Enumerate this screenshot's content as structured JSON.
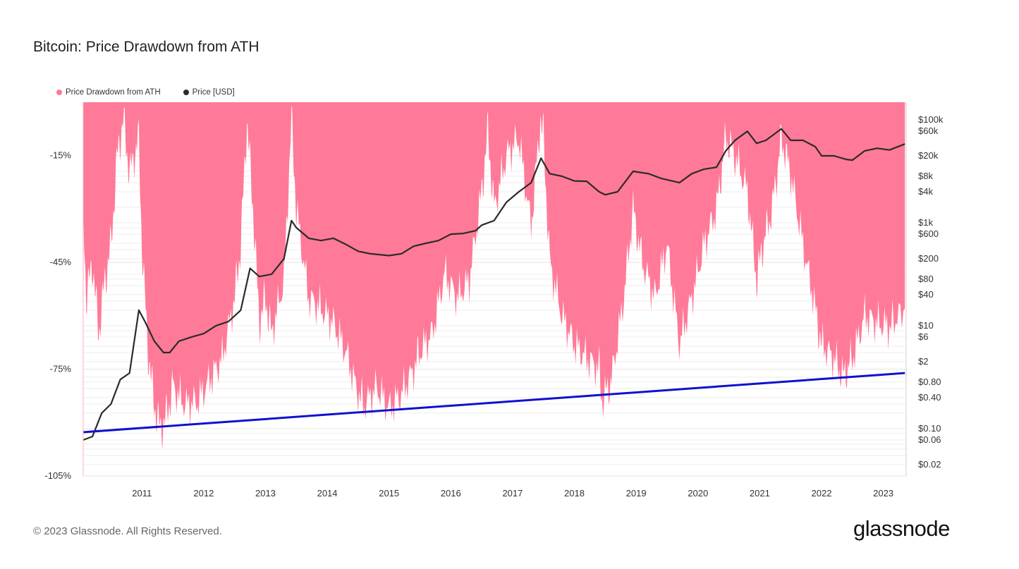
{
  "title": "Bitcoin: Price Drawdown from ATH",
  "legend": {
    "drawdown_label": "Price Drawdown from ATH",
    "price_label": "Price [USD]"
  },
  "colors": {
    "drawdown": "#ff7a98",
    "price": "#2b2b2b",
    "trendline": "#1010d0"
  },
  "footer": "© 2023 Glassnode. All Rights Reserved.",
  "brand": "glassnode",
  "chart_data": {
    "type": "area",
    "x_ticks": [
      "2011",
      "2012",
      "2013",
      "2014",
      "2015",
      "2016",
      "2017",
      "2018",
      "2019",
      "2020",
      "2021",
      "2022",
      "2023"
    ],
    "y_left_ticks": [
      "-15%",
      "-45%",
      "-75%",
      "-105%"
    ],
    "y_left_values": [
      -15,
      -45,
      -75,
      -105
    ],
    "y_right_ticks": [
      "$100k",
      "$60k",
      "$20k",
      "$8k",
      "$4k",
      "$1k",
      "$600",
      "$200",
      "$80",
      "$40",
      "$10",
      "$6",
      "$2",
      "$0.80",
      "$0.40",
      "$0.10",
      "$0.06",
      "$0.02"
    ],
    "y_right_values": [
      100000,
      60000,
      20000,
      8000,
      4000,
      1000,
      600,
      200,
      80,
      40,
      10,
      6,
      2,
      0.8,
      0.4,
      0.1,
      0.06,
      0.02
    ],
    "xlim": [
      "2010-07",
      "2023-11"
    ],
    "ylim_left": [
      -105,
      0
    ],
    "ylim_right_log": [
      0.02,
      200000
    ],
    "grid": true,
    "legend_position": "top-left",
    "series": [
      {
        "name": "Price Drawdown from ATH",
        "axis": "left",
        "x": [
          2010.55,
          2010.6,
          2010.7,
          2010.8,
          2010.9,
          2011.0,
          2011.1,
          2011.2,
          2011.3,
          2011.45,
          2011.5,
          2011.6,
          2011.7,
          2011.8,
          2011.9,
          2012.0,
          2012.2,
          2012.4,
          2012.6,
          2012.8,
          2013.0,
          2013.1,
          2013.2,
          2013.3,
          2013.4,
          2013.5,
          2013.6,
          2013.8,
          2013.92,
          2014.0,
          2014.2,
          2014.4,
          2014.6,
          2014.8,
          2015.0,
          2015.1,
          2015.3,
          2015.5,
          2015.7,
          2015.9,
          2016.0,
          2016.2,
          2016.4,
          2016.6,
          2016.8,
          2017.0,
          2017.1,
          2017.2,
          2017.4,
          2017.6,
          2017.8,
          2017.95,
          2018.0,
          2018.1,
          2018.3,
          2018.5,
          2018.7,
          2018.9,
          2018.95,
          2019.1,
          2019.3,
          2019.45,
          2019.6,
          2019.8,
          2020.0,
          2020.2,
          2020.4,
          2020.6,
          2020.8,
          2020.95,
          2021.1,
          2021.3,
          2021.45,
          2021.55,
          2021.7,
          2021.85,
          2022.0,
          2022.2,
          2022.4,
          2022.5,
          2022.7,
          2022.85,
          2023.0,
          2023.2,
          2023.4,
          2023.6,
          2023.85
        ],
        "values": [
          -30,
          -55,
          -45,
          -65,
          -50,
          -40,
          -15,
          -5,
          -20,
          -10,
          -40,
          -70,
          -85,
          -92,
          -88,
          -80,
          -85,
          -84,
          -78,
          -72,
          -55,
          -40,
          -5,
          -30,
          -62,
          -55,
          -65,
          -50,
          -5,
          -30,
          -55,
          -58,
          -62,
          -70,
          -82,
          -85,
          -80,
          -86,
          -82,
          -75,
          -70,
          -65,
          -48,
          -55,
          -50,
          -25,
          -8,
          -30,
          -15,
          -10,
          -35,
          -5,
          -10,
          -45,
          -60,
          -68,
          -72,
          -75,
          -84,
          -78,
          -55,
          -30,
          -45,
          -55,
          -40,
          -68,
          -55,
          -40,
          -30,
          -10,
          -15,
          -25,
          -50,
          -40,
          -30,
          -10,
          -20,
          -40,
          -58,
          -68,
          -72,
          -77,
          -72,
          -60,
          -62,
          -63,
          -58
        ]
      },
      {
        "name": "Price [USD]",
        "axis": "right",
        "x": [
          2010.55,
          2010.7,
          2010.85,
          2011.0,
          2011.15,
          2011.3,
          2011.45,
          2011.55,
          2011.7,
          2011.85,
          2011.95,
          2012.1,
          2012.3,
          2012.5,
          2012.7,
          2012.9,
          2013.1,
          2013.25,
          2013.4,
          2013.6,
          2013.8,
          2013.92,
          2014.0,
          2014.2,
          2014.4,
          2014.6,
          2014.8,
          2015.0,
          2015.2,
          2015.5,
          2015.7,
          2015.9,
          2016.1,
          2016.3,
          2016.5,
          2016.7,
          2016.9,
          2017.0,
          2017.2,
          2017.4,
          2017.6,
          2017.8,
          2017.96,
          2018.1,
          2018.3,
          2018.5,
          2018.7,
          2018.9,
          2019.0,
          2019.2,
          2019.45,
          2019.7,
          2019.9,
          2020.2,
          2020.4,
          2020.6,
          2020.8,
          2020.95,
          2021.1,
          2021.3,
          2021.45,
          2021.6,
          2021.85,
          2022.0,
          2022.2,
          2022.4,
          2022.5,
          2022.7,
          2022.9,
          2023.0,
          2023.2,
          2023.4,
          2023.6,
          2023.85
        ],
        "values": [
          0.06,
          0.07,
          0.2,
          0.3,
          0.9,
          1.2,
          20,
          12,
          5,
          3,
          3,
          5,
          6,
          7,
          10,
          12,
          20,
          130,
          90,
          100,
          200,
          1100,
          800,
          500,
          450,
          500,
          380,
          280,
          250,
          230,
          250,
          350,
          400,
          450,
          600,
          620,
          700,
          900,
          1100,
          2500,
          4000,
          6000,
          18000,
          9000,
          8000,
          6500,
          6400,
          4000,
          3500,
          4000,
          10000,
          9000,
          7300,
          6000,
          9000,
          11000,
          12000,
          25000,
          40000,
          60000,
          35000,
          40000,
          67000,
          40000,
          40000,
          30000,
          20000,
          20000,
          17000,
          16500,
          25000,
          28000,
          26000,
          34000
        ]
      },
      {
        "name": "",
        "axis": "right",
        "type": "line",
        "x": [
          2010.55,
          2023.85
        ],
        "values": [
          0.085,
          1.2
        ]
      }
    ]
  }
}
